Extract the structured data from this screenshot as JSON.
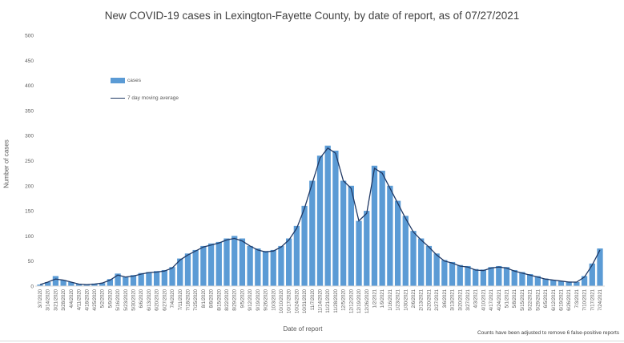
{
  "title": "New COVID-19 cases in Lexington-Fayette County, by date of report, as of 07/27/2021",
  "note": "Counts have been adjusted to remove 6 false-positive reports",
  "colors": {
    "bar": "#5b9bd5",
    "line": "#1f3864",
    "axis": "#d9d9d9",
    "text": "#595959"
  },
  "chart_data": {
    "type": "bar",
    "title": "New COVID-19 cases in Lexington-Fayette County, by date of report, as of 07/27/2021",
    "xlabel": "Date of report",
    "ylabel": "Number of cases",
    "ylim": [
      0,
      500
    ],
    "yticks": [
      0,
      50,
      100,
      150,
      200,
      250,
      300,
      350,
      400,
      450,
      500
    ],
    "x_tick_labels": [
      "3/7/2020",
      "3/14/2020",
      "3/21/2020",
      "3/28/2020",
      "4/4/2020",
      "4/11/2020",
      "4/18/2020",
      "4/25/2020",
      "5/2/2020",
      "5/9/2020",
      "5/16/2020",
      "5/23/2020",
      "5/30/2020",
      "6/6/2020",
      "6/13/2020",
      "6/20/2020",
      "6/27/2020",
      "7/4/2020",
      "7/11/2020",
      "7/18/2020",
      "7/25/2020",
      "8/1/2020",
      "8/8/2020",
      "8/15/2020",
      "8/22/2020",
      "8/29/2020",
      "9/5/2020",
      "9/12/2020",
      "9/19/2020",
      "9/26/2020",
      "10/3/2020",
      "10/10/2020",
      "10/17/2020",
      "10/24/2020",
      "10/31/2020",
      "11/7/2020",
      "11/14/2020",
      "11/21/2020",
      "11/28/2020",
      "12/5/2020",
      "12/12/2020",
      "12/19/2020",
      "12/26/2020",
      "1/2/2021",
      "1/9/2021",
      "1/16/2021",
      "1/23/2021",
      "1/30/2021",
      "2/6/2021",
      "2/13/2021",
      "2/20/2021",
      "2/27/2021",
      "3/6/2021",
      "3/13/2021",
      "3/20/2021",
      "3/27/2021",
      "4/3/2021",
      "4/10/2021",
      "4/17/2021",
      "4/24/2021",
      "5/1/2021",
      "5/8/2021",
      "5/15/2021",
      "5/22/2021",
      "5/29/2021",
      "6/5/2021",
      "6/12/2021",
      "6/19/2021",
      "6/26/2021",
      "7/3/2021",
      "7/10/2021",
      "7/17/2021",
      "7/24/2021"
    ],
    "grid": false,
    "legend_position": "upper-left",
    "series": [
      {
        "name": "cases",
        "type": "bar",
        "note": "weekly average of daily cases, aligned to x tick labels",
        "values": [
          3,
          8,
          20,
          12,
          8,
          4,
          4,
          5,
          6,
          14,
          25,
          18,
          22,
          26,
          28,
          30,
          32,
          38,
          55,
          65,
          72,
          80,
          85,
          88,
          95,
          100,
          95,
          80,
          75,
          70,
          72,
          80,
          95,
          120,
          160,
          210,
          260,
          280,
          270,
          210,
          200,
          130,
          150,
          240,
          230,
          200,
          170,
          140,
          110,
          95,
          80,
          65,
          52,
          48,
          42,
          40,
          34,
          33,
          38,
          40,
          38,
          32,
          28,
          24,
          20,
          15,
          12,
          10,
          9,
          8,
          20,
          45,
          75
        ]
      },
      {
        "name": "7 day moving average",
        "type": "line",
        "values": [
          3,
          8,
          14,
          12,
          8,
          4,
          3,
          4,
          6,
          12,
          22,
          18,
          20,
          24,
          27,
          28,
          30,
          36,
          52,
          62,
          70,
          78,
          82,
          86,
          92,
          95,
          90,
          80,
          72,
          68,
          70,
          78,
          92,
          115,
          155,
          205,
          255,
          275,
          265,
          210,
          195,
          130,
          145,
          235,
          225,
          195,
          165,
          135,
          108,
          92,
          78,
          62,
          50,
          46,
          40,
          38,
          32,
          31,
          36,
          38,
          36,
          30,
          26,
          22,
          18,
          14,
          12,
          10,
          8,
          8,
          18,
          42,
          72
        ]
      }
    ]
  }
}
